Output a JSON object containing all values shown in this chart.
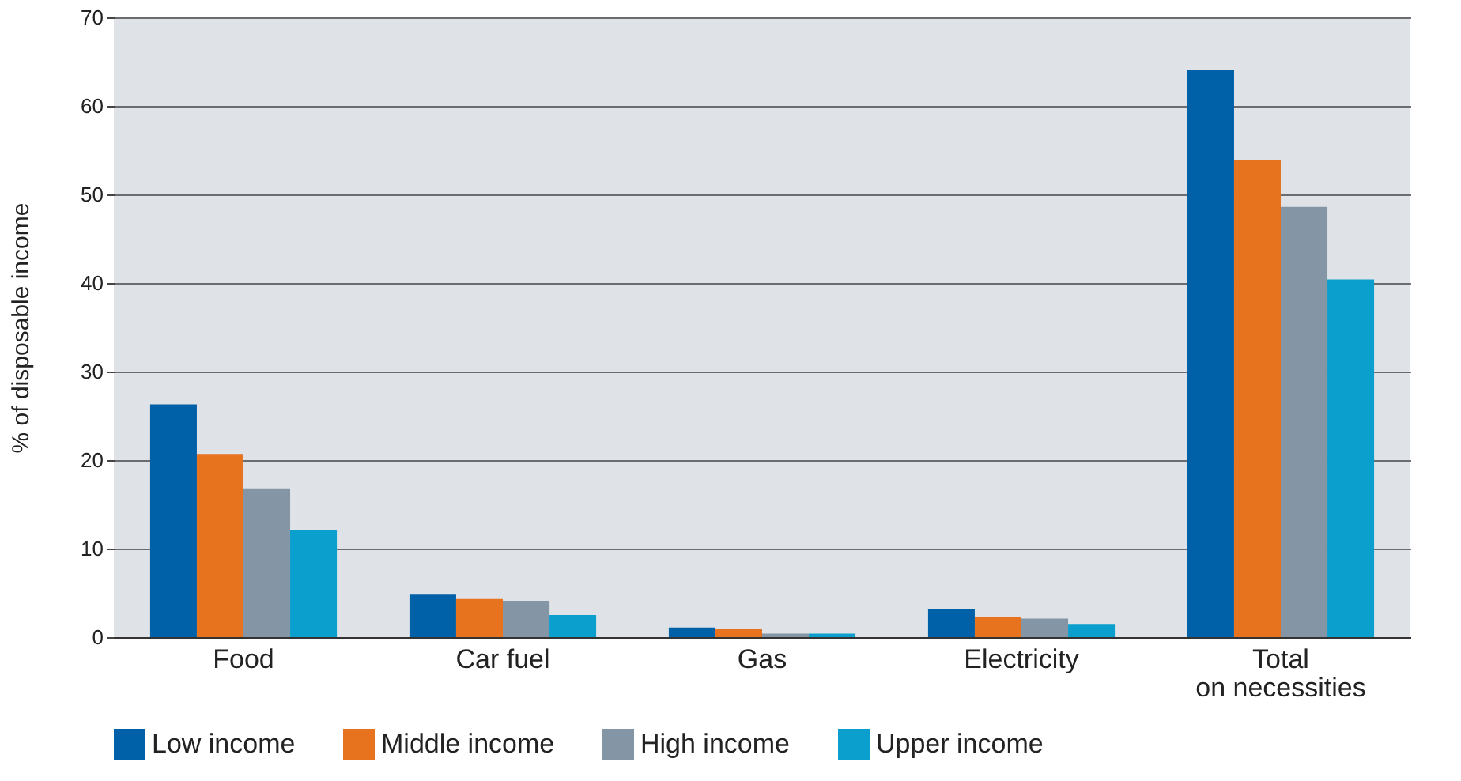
{
  "chart_data": {
    "type": "bar",
    "ylabel": "% of disposable income",
    "categories": [
      "Food",
      "Car fuel",
      "Gas",
      "Electricity",
      "Total\non necessities"
    ],
    "series": [
      {
        "name": "Low income",
        "color": "#0060a8",
        "values": [
          26.3,
          4.8,
          1.1,
          3.2,
          64.1
        ]
      },
      {
        "name": "Middle income",
        "color": "#e8731f",
        "values": [
          20.7,
          4.3,
          0.9,
          2.3,
          53.9
        ]
      },
      {
        "name": "High income",
        "color": "#8496a6",
        "values": [
          16.8,
          4.1,
          0.4,
          2.1,
          48.6
        ]
      },
      {
        "name": "Upper income",
        "color": "#0a9fcc",
        "values": [
          12.1,
          2.5,
          0.4,
          1.4,
          40.4
        ]
      }
    ],
    "ylim": [
      0,
      70
    ],
    "yticks": [
      0,
      10,
      20,
      30,
      40,
      50,
      60,
      70
    ],
    "grid": "y",
    "legend": "bottom"
  }
}
